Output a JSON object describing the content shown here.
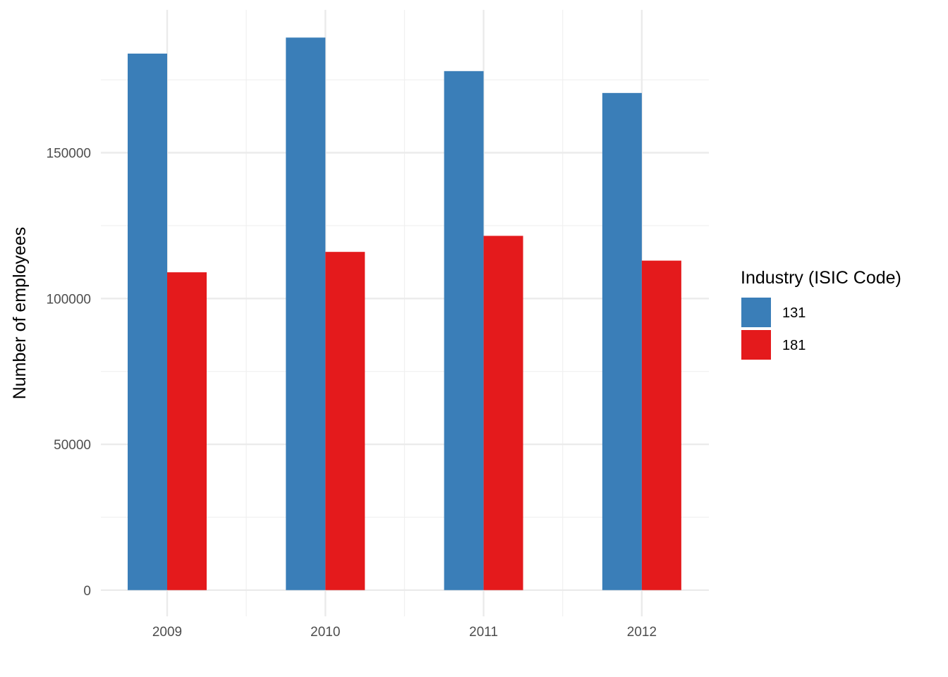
{
  "chart_data": {
    "type": "bar",
    "categories": [
      "2009",
      "2010",
      "2011",
      "2012"
    ],
    "series": [
      {
        "name": "131",
        "color": "#3a7eb8",
        "values": [
          184000,
          189500,
          178000,
          170500
        ]
      },
      {
        "name": "181",
        "color": "#e41a1c",
        "values": [
          109000,
          116000,
          121500,
          113000
        ]
      }
    ],
    "title": "",
    "xlabel": "",
    "ylabel": "Number of employees",
    "ylim": [
      -9000,
      199000
    ],
    "yticks": [
      0,
      50000,
      100000,
      150000
    ],
    "ytick_labels": [
      "0",
      "50000",
      "100000",
      "150000"
    ],
    "grid": true,
    "legend": {
      "title": "Industry (ISIC Code)",
      "placement": "right"
    }
  }
}
